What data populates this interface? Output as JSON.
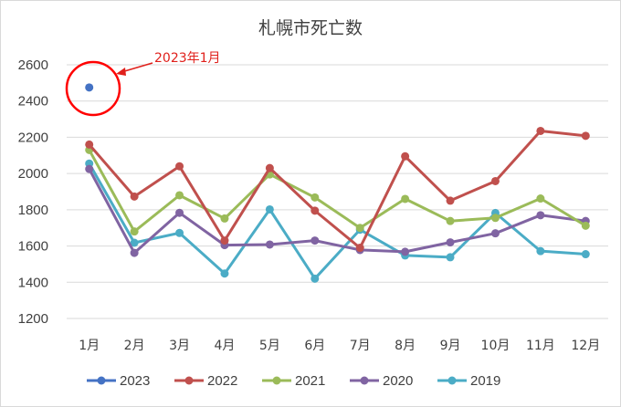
{
  "chart_data": {
    "type": "line",
    "title": "札幌市死亡数",
    "xlabel": "",
    "ylabel": "",
    "categories": [
      "1月",
      "2月",
      "3月",
      "4月",
      "5月",
      "6月",
      "7月",
      "8月",
      "9月",
      "10月",
      "11月",
      "12月"
    ],
    "ylim": [
      1200,
      2600
    ],
    "yticks": [
      1200,
      1400,
      1600,
      1800,
      2000,
      2200,
      2400,
      2600
    ],
    "grid": true,
    "legend_position": "bottom",
    "series": [
      {
        "name": "2023",
        "color": "#4472c4",
        "values": [
          2475,
          null,
          null,
          null,
          null,
          null,
          null,
          null,
          null,
          null,
          null,
          null
        ]
      },
      {
        "name": "2022",
        "color": "#c0504d",
        "values": [
          2160,
          1873,
          2040,
          1630,
          2030,
          1795,
          1590,
          2095,
          1850,
          1958,
          2235,
          2208
        ]
      },
      {
        "name": "2021",
        "color": "#9bbb59",
        "values": [
          2130,
          1680,
          1880,
          1752,
          1995,
          1868,
          1700,
          1860,
          1738,
          1755,
          1862,
          1712
        ]
      },
      {
        "name": "2020",
        "color": "#8064a2",
        "values": [
          2025,
          1562,
          1783,
          1605,
          1608,
          1630,
          1578,
          1568,
          1620,
          1670,
          1770,
          1738
        ]
      },
      {
        "name": "2019",
        "color": "#4bacc6",
        "values": [
          2055,
          1618,
          1672,
          1448,
          1802,
          1420,
          1690,
          1548,
          1538,
          1782,
          1572,
          1555
        ]
      }
    ],
    "annotation": {
      "text": "2023年1月",
      "color": "#e0201b",
      "target_series": "2023",
      "target_category": "1月"
    }
  }
}
